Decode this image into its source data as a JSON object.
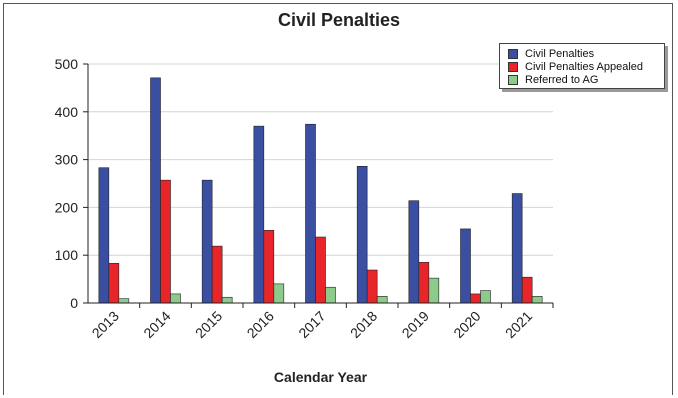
{
  "chart_data": {
    "type": "bar",
    "title": "Civil Penalties",
    "xlabel": "Calendar Year",
    "ylabel": "",
    "categories": [
      "2013",
      "2014",
      "2015",
      "2016",
      "2017",
      "2018",
      "2019",
      "2020",
      "2021"
    ],
    "series": [
      {
        "name": "Civil Penalties",
        "color": "#3a4fa2",
        "values": [
          283,
          471,
          257,
          370,
          374,
          286,
          214,
          155,
          229
        ]
      },
      {
        "name": "Civil Penalties Appealed",
        "color": "#e8262a",
        "values": [
          83,
          257,
          119,
          152,
          138,
          69,
          85,
          19,
          54
        ]
      },
      {
        "name": "Referred to AG",
        "color": "#8ccb8c",
        "values": [
          9,
          19,
          12,
          40,
          33,
          14,
          52,
          26,
          14
        ]
      }
    ],
    "ylim": [
      0,
      500
    ],
    "yticks": [
      0,
      100,
      200,
      300,
      400,
      500
    ],
    "grid": true,
    "legend_position": "top-right"
  }
}
